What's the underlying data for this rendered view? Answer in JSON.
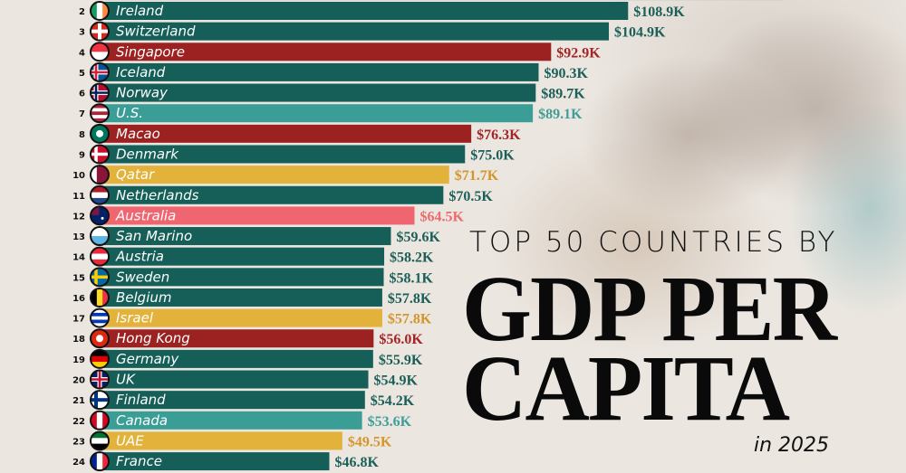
{
  "title": {
    "subtitle": "TOP 50 COUNTRIES BY",
    "main_line1": "GDP PER",
    "main_line2": "CAPITA",
    "year": "in 2025"
  },
  "colors": {
    "europe": "#155f58",
    "americas": "#3a9e97",
    "asia": "#9c2121",
    "middle_east": "#e2b23b",
    "oceania": "#ef6670",
    "bg": "#ebe6e0"
  },
  "label_colors": {
    "europe": "#1b5f58",
    "americas": "#3f9e97",
    "asia": "#a32525",
    "middle_east": "#d4962a",
    "oceania": "#ec6b6b"
  },
  "chart_data": {
    "type": "bar",
    "orientation": "horizontal",
    "title": "TOP 50 COUNTRIES BY GDP PER CAPITA in 2025",
    "xlim": [
      0,
      145
    ],
    "grid": false,
    "rows": [
      {
        "rank": 2,
        "country": "Ireland",
        "value": 108.9,
        "label": "$108.9K",
        "group": "europe",
        "flag": [
          "#169b62",
          "#ffffff",
          "#ff883e"
        ],
        "flag_dir": "v"
      },
      {
        "rank": 3,
        "country": "Switzerland",
        "value": 104.9,
        "label": "$104.9K",
        "group": "europe",
        "flag": [
          "#d52b1e"
        ],
        "flag_dir": "cross-w"
      },
      {
        "rank": 4,
        "country": "Singapore",
        "value": 92.9,
        "label": "$92.9K",
        "group": "asia",
        "flag": [
          "#ef3340",
          "#ffffff"
        ],
        "flag_dir": "h"
      },
      {
        "rank": 5,
        "country": "Iceland",
        "value": 90.3,
        "label": "$90.3K",
        "group": "europe",
        "flag": [
          "#02529c"
        ],
        "flag_dir": "nordic-red"
      },
      {
        "rank": 6,
        "country": "Norway",
        "value": 89.7,
        "label": "$89.7K",
        "group": "europe",
        "flag": [
          "#ba0c2f"
        ],
        "flag_dir": "nordic-blue"
      },
      {
        "rank": 7,
        "country": "U.S.",
        "value": 89.1,
        "label": "$89.1K",
        "group": "americas",
        "flag": [
          "#b22234",
          "#ffffff",
          "#b22234",
          "#ffffff",
          "#b22234"
        ],
        "flag_dir": "h"
      },
      {
        "rank": 8,
        "country": "Macao",
        "value": 76.3,
        "label": "$76.3K",
        "group": "asia",
        "flag": [
          "#00785e"
        ],
        "flag_dir": "solid-dot"
      },
      {
        "rank": 9,
        "country": "Denmark",
        "value": 75.0,
        "label": "$75.0K",
        "group": "europe",
        "flag": [
          "#c8102e"
        ],
        "flag_dir": "nordic-white"
      },
      {
        "rank": 10,
        "country": "Qatar",
        "value": 71.7,
        "label": "$71.7K",
        "group": "middle_east",
        "flag": [
          "#ffffff",
          "#8a1538",
          "#8a1538"
        ],
        "flag_dir": "v"
      },
      {
        "rank": 11,
        "country": "Netherlands",
        "value": 70.5,
        "label": "$70.5K",
        "group": "europe",
        "flag": [
          "#ae1c28",
          "#ffffff",
          "#21468b"
        ],
        "flag_dir": "h"
      },
      {
        "rank": 12,
        "country": "Australia",
        "value": 64.5,
        "label": "$64.5K",
        "group": "oceania",
        "flag": [
          "#012169"
        ],
        "flag_dir": "solid"
      },
      {
        "rank": 13,
        "country": "San Marino",
        "value": 59.6,
        "label": "$59.6K",
        "group": "europe",
        "flag": [
          "#ffffff",
          "#5eb6e4"
        ],
        "flag_dir": "h"
      },
      {
        "rank": 14,
        "country": "Austria",
        "value": 58.2,
        "label": "$58.2K",
        "group": "europe",
        "flag": [
          "#ed2939",
          "#ffffff",
          "#ed2939"
        ],
        "flag_dir": "h"
      },
      {
        "rank": 15,
        "country": "Sweden",
        "value": 58.1,
        "label": "$58.1K",
        "group": "europe",
        "flag": [
          "#006aa7"
        ],
        "flag_dir": "nordic-yellow"
      },
      {
        "rank": 16,
        "country": "Belgium",
        "value": 57.8,
        "label": "$57.8K",
        "group": "europe",
        "flag": [
          "#000000",
          "#fdda24",
          "#ef3340"
        ],
        "flag_dir": "v"
      },
      {
        "rank": 17,
        "country": "Israel",
        "value": 57.8,
        "label": "$57.8K",
        "group": "middle_east",
        "flag": [
          "#ffffff",
          "#0038b8",
          "#ffffff",
          "#0038b8",
          "#ffffff"
        ],
        "flag_dir": "h"
      },
      {
        "rank": 18,
        "country": "Hong Kong",
        "value": 56.0,
        "label": "$56.0K",
        "group": "asia",
        "flag": [
          "#de2910"
        ],
        "flag_dir": "solid-dot"
      },
      {
        "rank": 19,
        "country": "Germany",
        "value": 55.9,
        "label": "$55.9K",
        "group": "europe",
        "flag": [
          "#000000",
          "#dd0000",
          "#ffce00"
        ],
        "flag_dir": "h"
      },
      {
        "rank": 20,
        "country": "UK",
        "value": 54.9,
        "label": "$54.9K",
        "group": "europe",
        "flag": [
          "#012169"
        ],
        "flag_dir": "cross-red"
      },
      {
        "rank": 21,
        "country": "Finland",
        "value": 54.2,
        "label": "$54.2K",
        "group": "europe",
        "flag": [
          "#ffffff"
        ],
        "flag_dir": "nordic-bluecross"
      },
      {
        "rank": 22,
        "country": "Canada",
        "value": 53.6,
        "label": "$53.6K",
        "group": "americas",
        "flag": [
          "#d80621",
          "#ffffff",
          "#d80621"
        ],
        "flag_dir": "v"
      },
      {
        "rank": 23,
        "country": "UAE",
        "value": 49.5,
        "label": "$49.5K",
        "group": "middle_east",
        "flag": [
          "#00732f",
          "#ffffff",
          "#000000"
        ],
        "flag_dir": "h"
      },
      {
        "rank": 24,
        "country": "France",
        "value": 46.8,
        "label": "$46.8K",
        "group": "europe",
        "flag": [
          "#002395",
          "#ffffff",
          "#ed2939"
        ],
        "flag_dir": "v"
      }
    ]
  }
}
